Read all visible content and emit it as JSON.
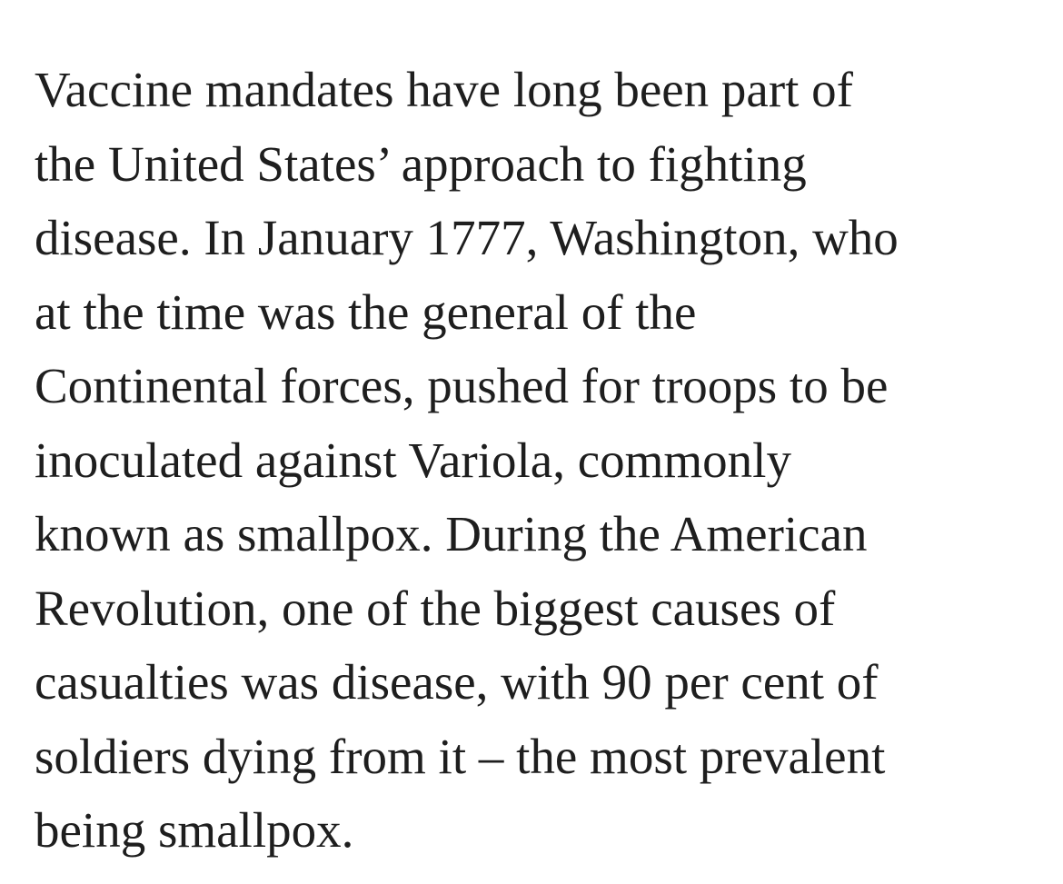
{
  "article": {
    "paragraph_lines": [
      "Vaccine mandates have long been part of",
      "the United States’ approach to fighting",
      "disease. In January 1777, Washington, who",
      "at the time was the general of the",
      "Continental forces, pushed for troops to be",
      "inoculated against Variola, commonly",
      "known as smallpox. During the American",
      "Revolution, one of the biggest causes of",
      "casualties was disease, with 90 per cent of",
      "soldiers dying from it – the most prevalent",
      "being smallpox."
    ]
  },
  "colors": {
    "text": "#1e1e1e",
    "background": "#ffffff"
  }
}
